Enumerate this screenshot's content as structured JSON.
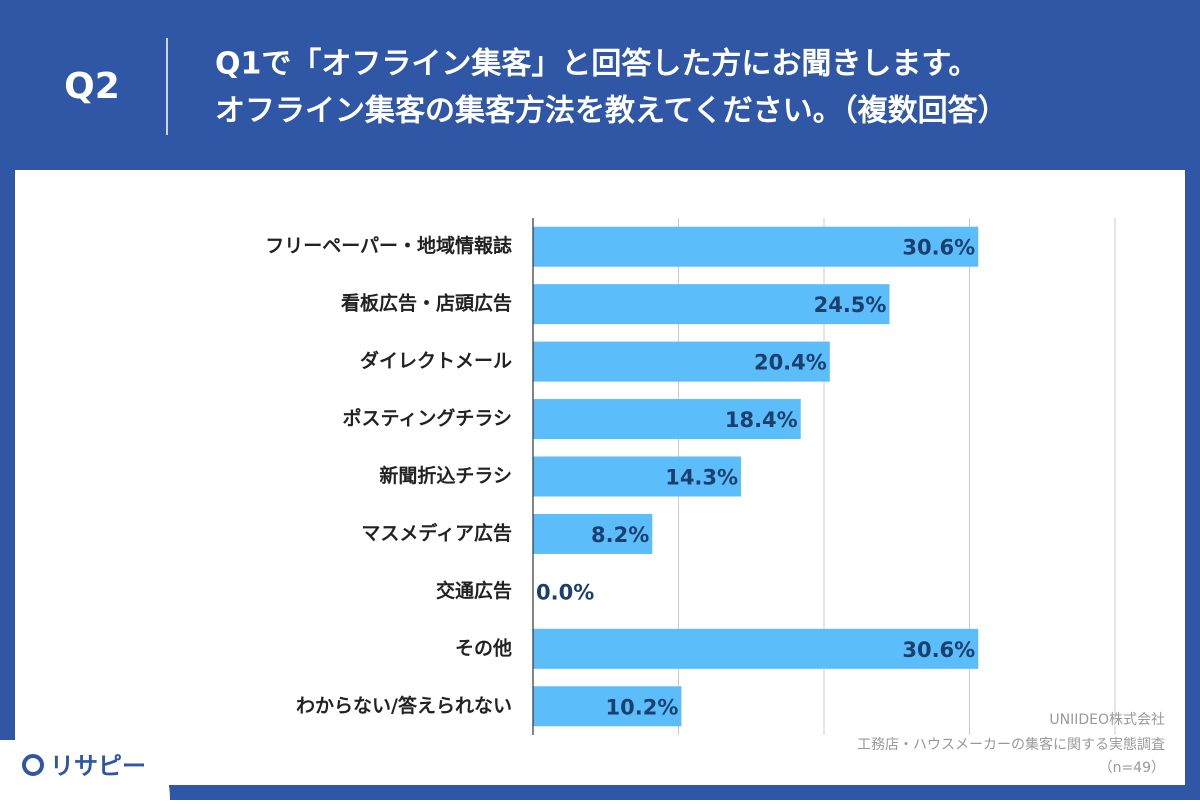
{
  "header": {
    "question": "Q2",
    "title_lines": [
      "Q1で「オフライン集客」と回答した方にお聞きします。",
      "オフライン集客の集客方法を教えてください。（複数回答）"
    ]
  },
  "chart_data": {
    "type": "bar",
    "orientation": "horizontal",
    "categories": [
      "フリーペーパー・地域情報誌",
      "看板広告・店頭広告",
      "ダイレクトメール",
      "ポスティングチラシ",
      "新聞折込チラシ",
      "マスメディア広告",
      "交通広告",
      "その他",
      "わからない/答えられない"
    ],
    "values": [
      30.6,
      24.5,
      20.4,
      18.4,
      14.3,
      8.2,
      0.0,
      30.6,
      10.2
    ],
    "value_labels": [
      "30.6%",
      "24.5%",
      "20.4%",
      "18.4%",
      "14.3%",
      "8.2%",
      "0.0%",
      "30.6%",
      "10.2%"
    ],
    "color": "#5bbdf9",
    "xlim": [
      0,
      40
    ],
    "xticks": [
      0,
      10,
      20,
      30,
      40
    ],
    "grid": true
  },
  "footer": {
    "source_lines": [
      "UNIIDEO株式会社",
      "工務店・ハウスメーカーの集客に関する実態調査",
      "（n=49）"
    ]
  },
  "logo": "リサピー"
}
